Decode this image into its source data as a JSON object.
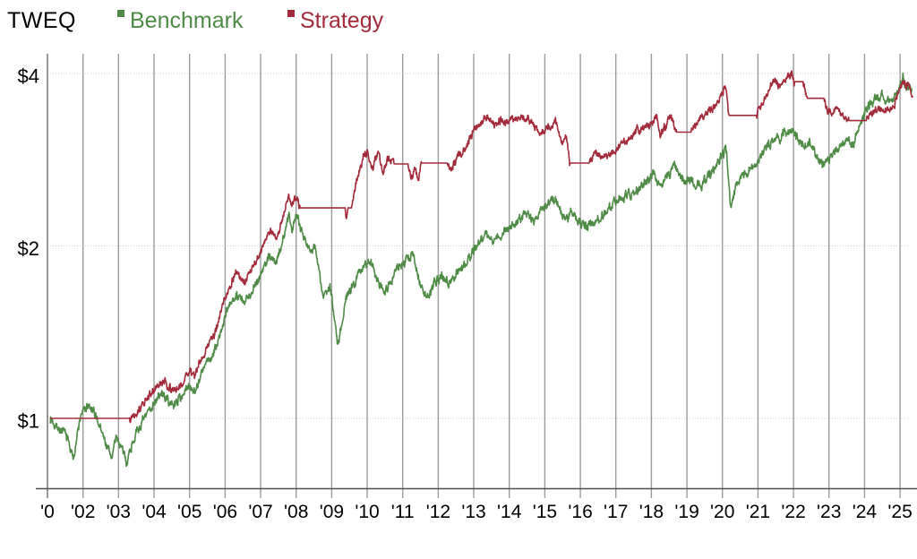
{
  "header": {
    "title": "TWEQ"
  },
  "legend": [
    {
      "label": "Benchmark",
      "color": "#4e8c46"
    },
    {
      "label": "Strategy",
      "color": "#a32a3a"
    }
  ],
  "colors": {
    "benchmark_green": "#4e8c46",
    "strategy_red": "#a32a3a",
    "grid": "#9b9b9b",
    "axis": "#4f4f4f",
    "y_axis": "#7d7d7d",
    "dotted_grid": "#cccccc",
    "text": "#000000"
  },
  "chart_data": {
    "type": "line",
    "y_scale": "log",
    "grid": "on",
    "legend_position": "top",
    "x_domain": [
      2001.0,
      2025.5
    ],
    "y_domain": [
      0.75,
      4.3
    ],
    "y_ticks": [
      {
        "label": "$1",
        "value": 1
      },
      {
        "label": "$2",
        "value": 2
      },
      {
        "label": "$4",
        "value": 4
      }
    ],
    "x_ticks": [
      {
        "label": "'0",
        "year": 2001
      },
      {
        "label": "'02",
        "year": 2002
      },
      {
        "label": "'03",
        "year": 2003
      },
      {
        "label": "'04",
        "year": 2004
      },
      {
        "label": "'05",
        "year": 2005
      },
      {
        "label": "'06",
        "year": 2006
      },
      {
        "label": "'07",
        "year": 2007
      },
      {
        "label": "'08",
        "year": 2008
      },
      {
        "label": "'09",
        "year": 2009
      },
      {
        "label": "'10",
        "year": 2010
      },
      {
        "label": "'11",
        "year": 2011
      },
      {
        "label": "'12",
        "year": 2012
      },
      {
        "label": "'13",
        "year": 2013
      },
      {
        "label": "'14",
        "year": 2014
      },
      {
        "label": "'15",
        "year": 2015
      },
      {
        "label": "'16",
        "year": 2016
      },
      {
        "label": "'17",
        "year": 2017
      },
      {
        "label": "'18",
        "year": 2018
      },
      {
        "label": "'19",
        "year": 2019
      },
      {
        "label": "'20",
        "year": 2020
      },
      {
        "label": "'21",
        "year": 2021
      },
      {
        "label": "'22",
        "year": 2022
      },
      {
        "label": "'23",
        "year": 2023
      },
      {
        "label": "'24",
        "year": 2024
      },
      {
        "label": "'25",
        "year": 2025
      }
    ],
    "series": [
      {
        "name": "Benchmark",
        "color": "#4e8c46",
        "seed": 7,
        "noise": 0.042,
        "keypoints": [
          [
            2001.08,
            1.0
          ],
          [
            2001.3,
            0.965
          ],
          [
            2001.55,
            0.93
          ],
          [
            2001.72,
            0.85
          ],
          [
            2001.95,
            1.02
          ],
          [
            2002.15,
            1.05
          ],
          [
            2002.4,
            1.0
          ],
          [
            2002.6,
            0.92
          ],
          [
            2002.8,
            0.855
          ],
          [
            2002.95,
            0.93
          ],
          [
            2003.1,
            0.88
          ],
          [
            2003.22,
            0.84
          ],
          [
            2003.45,
            0.93
          ],
          [
            2003.7,
            0.99
          ],
          [
            2004.0,
            1.07
          ],
          [
            2004.25,
            1.105
          ],
          [
            2004.5,
            1.05
          ],
          [
            2004.75,
            1.09
          ],
          [
            2005.0,
            1.14
          ],
          [
            2005.15,
            1.12
          ],
          [
            2005.45,
            1.24
          ],
          [
            2005.7,
            1.3
          ],
          [
            2006.0,
            1.5
          ],
          [
            2006.3,
            1.66
          ],
          [
            2006.55,
            1.58
          ],
          [
            2006.8,
            1.7
          ],
          [
            2007.0,
            1.78
          ],
          [
            2007.25,
            1.93
          ],
          [
            2007.45,
            1.86
          ],
          [
            2007.8,
            2.27
          ],
          [
            2007.88,
            2.12
          ],
          [
            2008.0,
            2.28
          ],
          [
            2008.2,
            2.1
          ],
          [
            2008.4,
            1.95
          ],
          [
            2008.55,
            1.99
          ],
          [
            2008.75,
            1.62
          ],
          [
            2008.95,
            1.7
          ],
          [
            2009.05,
            1.55
          ],
          [
            2009.18,
            1.35
          ],
          [
            2009.4,
            1.62
          ],
          [
            2009.6,
            1.7
          ],
          [
            2009.9,
            1.86
          ],
          [
            2010.1,
            1.88
          ],
          [
            2010.35,
            1.72
          ],
          [
            2010.55,
            1.67
          ],
          [
            2010.8,
            1.82
          ],
          [
            2011.0,
            1.86
          ],
          [
            2011.3,
            1.93
          ],
          [
            2011.55,
            1.67
          ],
          [
            2011.75,
            1.62
          ],
          [
            2011.9,
            1.73
          ],
          [
            2012.05,
            1.77
          ],
          [
            2012.3,
            1.73
          ],
          [
            2012.55,
            1.8
          ],
          [
            2012.8,
            1.88
          ],
          [
            2013.0,
            1.97
          ],
          [
            2013.35,
            2.11
          ],
          [
            2013.55,
            2.04
          ],
          [
            2014.0,
            2.15
          ],
          [
            2014.45,
            2.27
          ],
          [
            2014.7,
            2.21
          ],
          [
            2015.0,
            2.35
          ],
          [
            2015.3,
            2.42
          ],
          [
            2015.55,
            2.23
          ],
          [
            2015.75,
            2.3
          ],
          [
            2016.1,
            2.15
          ],
          [
            2016.4,
            2.22
          ],
          [
            2016.7,
            2.27
          ],
          [
            2017.0,
            2.41
          ],
          [
            2017.5,
            2.48
          ],
          [
            2018.0,
            2.62
          ],
          [
            2018.07,
            2.68
          ],
          [
            2018.2,
            2.53
          ],
          [
            2018.4,
            2.62
          ],
          [
            2018.65,
            2.76
          ],
          [
            2018.9,
            2.62
          ],
          [
            2019.15,
            2.58
          ],
          [
            2019.4,
            2.54
          ],
          [
            2019.7,
            2.7
          ],
          [
            2019.95,
            2.86
          ],
          [
            2020.12,
            2.95
          ],
          [
            2020.22,
            2.34
          ],
          [
            2020.4,
            2.55
          ],
          [
            2020.6,
            2.64
          ],
          [
            2020.85,
            2.78
          ],
          [
            2021.0,
            2.82
          ],
          [
            2021.3,
            3.0
          ],
          [
            2021.6,
            3.1
          ],
          [
            2021.95,
            3.2
          ],
          [
            2022.1,
            3.1
          ],
          [
            2022.3,
            2.98
          ],
          [
            2022.45,
            3.05
          ],
          [
            2022.7,
            2.83
          ],
          [
            2022.9,
            2.75
          ],
          [
            2023.1,
            2.92
          ],
          [
            2023.3,
            2.96
          ],
          [
            2023.5,
            3.1
          ],
          [
            2023.65,
            2.98
          ],
          [
            2023.9,
            3.3
          ],
          [
            2024.05,
            3.48
          ],
          [
            2024.3,
            3.6
          ],
          [
            2024.5,
            3.67
          ],
          [
            2024.65,
            3.55
          ],
          [
            2024.8,
            3.66
          ],
          [
            2024.95,
            3.72
          ],
          [
            2025.08,
            3.9
          ],
          [
            2025.18,
            3.78
          ],
          [
            2025.25,
            3.86
          ],
          [
            2025.33,
            3.7
          ]
        ]
      },
      {
        "name": "Strategy",
        "color": "#a32a3a",
        "seed": 13,
        "noise": 0.034,
        "keypoints": [
          [
            2001.08,
            1.0
          ],
          [
            2003.3,
            1.0
          ],
          [
            2003.5,
            1.03
          ],
          [
            2003.75,
            1.07
          ],
          [
            2004.0,
            1.12
          ],
          [
            2004.3,
            1.16
          ],
          [
            2004.55,
            1.11
          ],
          [
            2004.8,
            1.15
          ],
          [
            2005.0,
            1.21
          ],
          [
            2005.15,
            1.19
          ],
          [
            2005.45,
            1.32
          ],
          [
            2005.7,
            1.4
          ],
          [
            2006.0,
            1.62
          ],
          [
            2006.3,
            1.8
          ],
          [
            2006.55,
            1.71
          ],
          [
            2006.8,
            1.85
          ],
          [
            2007.0,
            1.95
          ],
          [
            2007.25,
            2.12
          ],
          [
            2007.45,
            2.05
          ],
          [
            2007.8,
            2.46
          ],
          [
            2007.88,
            2.34
          ],
          [
            2008.02,
            2.43
          ],
          [
            2008.1,
            2.33
          ],
          [
            2009.38,
            2.33
          ],
          [
            2009.41,
            2.26
          ],
          [
            2009.45,
            2.33
          ],
          [
            2009.55,
            2.33
          ],
          [
            2009.7,
            2.6
          ],
          [
            2009.9,
            2.88
          ],
          [
            2010.0,
            2.91
          ],
          [
            2010.15,
            2.72
          ],
          [
            2010.3,
            2.93
          ],
          [
            2010.45,
            2.7
          ],
          [
            2010.6,
            2.87
          ],
          [
            2010.75,
            2.78
          ],
          [
            2011.15,
            2.78
          ],
          [
            2011.25,
            2.65
          ],
          [
            2011.35,
            2.72
          ],
          [
            2011.45,
            2.62
          ],
          [
            2011.52,
            2.79
          ],
          [
            2012.25,
            2.79
          ],
          [
            2012.35,
            2.71
          ],
          [
            2012.55,
            2.85
          ],
          [
            2012.75,
            2.95
          ],
          [
            2013.0,
            3.18
          ],
          [
            2013.4,
            3.38
          ],
          [
            2013.6,
            3.25
          ],
          [
            2013.8,
            3.34
          ],
          [
            2014.0,
            3.29
          ],
          [
            2014.3,
            3.36
          ],
          [
            2014.6,
            3.3
          ],
          [
            2014.9,
            3.1
          ],
          [
            2015.1,
            3.25
          ],
          [
            2015.3,
            3.27
          ],
          [
            2015.5,
            3.02
          ],
          [
            2015.6,
            3.1
          ],
          [
            2015.7,
            2.79
          ],
          [
            2016.25,
            2.79
          ],
          [
            2016.45,
            2.9
          ],
          [
            2016.6,
            2.85
          ],
          [
            2017.0,
            2.94
          ],
          [
            2017.3,
            3.05
          ],
          [
            2017.6,
            3.18
          ],
          [
            2018.0,
            3.28
          ],
          [
            2018.15,
            3.35
          ],
          [
            2018.25,
            3.12
          ],
          [
            2018.4,
            3.25
          ],
          [
            2018.55,
            3.38
          ],
          [
            2018.7,
            3.16
          ],
          [
            2019.1,
            3.16
          ],
          [
            2019.3,
            3.3
          ],
          [
            2019.55,
            3.42
          ],
          [
            2019.75,
            3.48
          ],
          [
            2019.9,
            3.6
          ],
          [
            2020.0,
            3.72
          ],
          [
            2020.1,
            3.77
          ],
          [
            2020.18,
            3.38
          ],
          [
            2020.95,
            3.38
          ],
          [
            2021.1,
            3.55
          ],
          [
            2021.25,
            3.7
          ],
          [
            2021.45,
            3.86
          ],
          [
            2021.6,
            3.8
          ],
          [
            2021.8,
            3.92
          ],
          [
            2021.95,
            4.0
          ],
          [
            2022.02,
            3.87
          ],
          [
            2022.27,
            3.87
          ],
          [
            2022.33,
            3.7
          ],
          [
            2022.38,
            3.62
          ],
          [
            2022.85,
            3.62
          ],
          [
            2022.95,
            3.45
          ],
          [
            2023.1,
            3.4
          ],
          [
            2023.25,
            3.48
          ],
          [
            2023.4,
            3.36
          ],
          [
            2023.55,
            3.31
          ],
          [
            2024.05,
            3.31
          ],
          [
            2024.2,
            3.42
          ],
          [
            2024.4,
            3.5
          ],
          [
            2024.55,
            3.44
          ],
          [
            2024.7,
            3.42
          ],
          [
            2024.85,
            3.55
          ],
          [
            2024.95,
            3.68
          ],
          [
            2025.08,
            3.88
          ],
          [
            2025.15,
            3.8
          ],
          [
            2025.25,
            3.9
          ],
          [
            2025.35,
            3.62
          ]
        ]
      }
    ]
  }
}
